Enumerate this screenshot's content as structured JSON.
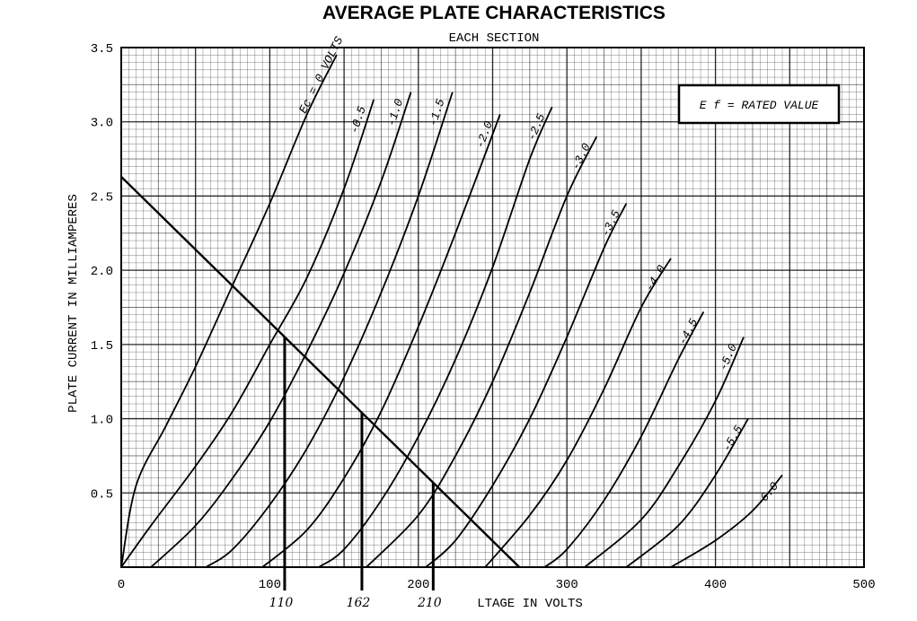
{
  "chart_data": {
    "type": "line",
    "title": "AVERAGE PLATE CHARACTERISTICS",
    "subtitle": "EACH SECTION",
    "xlabel": "LTAGE IN VOLTS",
    "ylabel": "PLATE CURRENT IN MILLIAMPERES",
    "xlim": [
      0,
      500
    ],
    "ylim": [
      0,
      3.5
    ],
    "grid": true,
    "x_ticks": [
      "0",
      "100",
      "200",
      "300",
      "400",
      "500"
    ],
    "y_ticks": [
      "0.5",
      "1.0",
      "1.5",
      "2.0",
      "2.5",
      "3.0",
      "3.5"
    ],
    "x_tick_values": [
      0,
      100,
      200,
      300,
      400,
      500
    ],
    "y_tick_values": [
      0.5,
      1.0,
      1.5,
      2.0,
      2.5,
      3.0,
      3.5
    ],
    "legend_box": {
      "text": "E f = RATED VALUE"
    },
    "series": [
      {
        "name": "Ec=0 VOLTS",
        "label": "Ec = 0 VOLTS",
        "x": [
          0,
          10,
          30,
          50,
          75,
          100,
          125,
          145
        ],
        "y": [
          0,
          0.55,
          0.95,
          1.35,
          1.9,
          2.45,
          3.05,
          3.45
        ]
      },
      {
        "name": "-0.5",
        "label": "-0.5",
        "x": [
          0,
          20,
          50,
          75,
          100,
          125,
          150,
          170
        ],
        "y": [
          0,
          0.28,
          0.68,
          1.05,
          1.5,
          1.95,
          2.55,
          3.15
        ]
      },
      {
        "name": "-1.0",
        "label": "-1.0",
        "x": [
          20,
          50,
          75,
          100,
          125,
          150,
          175,
          195
        ],
        "y": [
          0,
          0.28,
          0.6,
          0.98,
          1.45,
          1.98,
          2.6,
          3.2
        ]
      },
      {
        "name": "-1.5",
        "label": "-1.5",
        "x": [
          57,
          75,
          100,
          125,
          150,
          175,
          200,
          223
        ],
        "y": [
          0,
          0.12,
          0.42,
          0.8,
          1.28,
          1.85,
          2.5,
          3.2
        ]
      },
      {
        "name": "-2.0",
        "label": "-2.0",
        "x": [
          95,
          125,
          150,
          175,
          200,
          225,
          255
        ],
        "y": [
          0,
          0.25,
          0.6,
          1.05,
          1.62,
          2.25,
          3.05
        ]
      },
      {
        "name": "-2.5",
        "label": "-2.5",
        "x": [
          133,
          150,
          175,
          200,
          225,
          250,
          275,
          290
        ],
        "y": [
          0,
          0.12,
          0.45,
          0.88,
          1.4,
          2.02,
          2.75,
          3.1
        ]
      },
      {
        "name": "-3.0",
        "label": "-3.0",
        "x": [
          165,
          200,
          225,
          250,
          275,
          300,
          320
        ],
        "y": [
          0,
          0.35,
          0.75,
          1.25,
          1.85,
          2.5,
          2.9
        ]
      },
      {
        "name": "-3.5",
        "label": "-3.5",
        "x": [
          205,
          225,
          250,
          275,
          300,
          325,
          340
        ],
        "y": [
          0,
          0.18,
          0.55,
          1.0,
          1.55,
          2.15,
          2.45
        ]
      },
      {
        "name": "-4.0",
        "label": "-4.0",
        "x": [
          245,
          275,
          300,
          325,
          350,
          370
        ],
        "y": [
          0,
          0.35,
          0.72,
          1.2,
          1.75,
          2.08
        ]
      },
      {
        "name": "-4.5",
        "label": "-4.5",
        "x": [
          285,
          300,
          325,
          350,
          375,
          392
        ],
        "y": [
          0,
          0.12,
          0.45,
          0.88,
          1.4,
          1.72
        ]
      },
      {
        "name": "-5.0",
        "label": "-5.0",
        "x": [
          312,
          350,
          375,
          400,
          419
        ],
        "y": [
          0,
          0.32,
          0.68,
          1.12,
          1.55
        ]
      },
      {
        "name": "-5.5",
        "label": "-5.5",
        "x": [
          340,
          375,
          400,
          422
        ],
        "y": [
          0,
          0.28,
          0.62,
          1.0
        ]
      },
      {
        "name": "-6.0",
        "label": "-6.0",
        "x": [
          370,
          400,
          425,
          445
        ],
        "y": [
          0,
          0.18,
          0.38,
          0.62
        ]
      }
    ],
    "load_line": {
      "x": [
        0,
        268
      ],
      "y": [
        2.63,
        0
      ]
    },
    "annotations": [
      {
        "label": "110",
        "x": 110
      },
      {
        "label": "162",
        "x": 162
      },
      {
        "label": "210",
        "x": 210
      }
    ]
  }
}
